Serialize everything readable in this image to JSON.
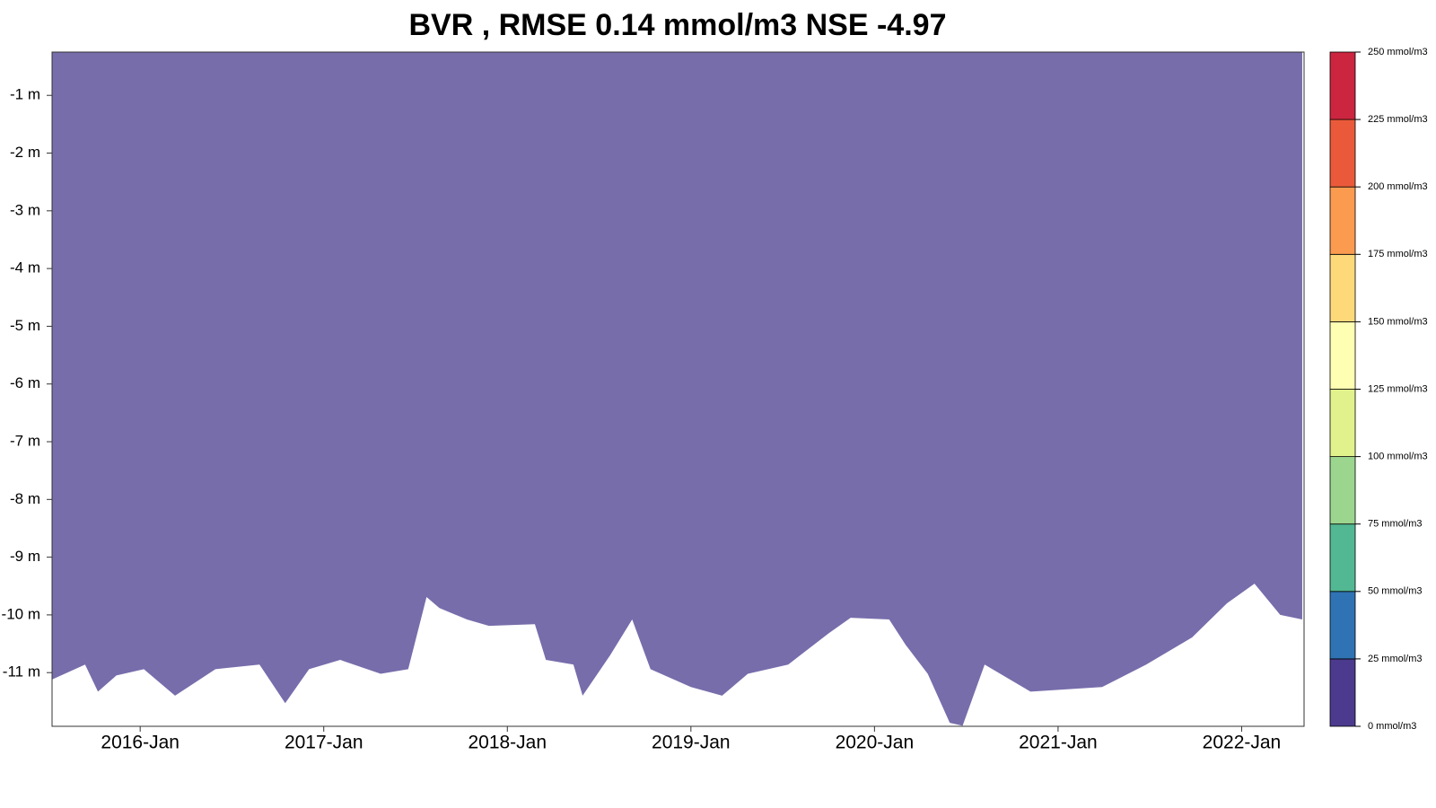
{
  "chart_data": {
    "type": "depth-area",
    "title": "BVR , RMSE 0.14 mmol/m3 NSE -4.97",
    "fill_color": "#776dab",
    "x": [
      2015.52,
      2015.7,
      2015.77,
      2015.87,
      2016.02,
      2016.19,
      2016.41,
      2016.65,
      2016.79,
      2016.92,
      2017.09,
      2017.31,
      2017.46,
      2017.56,
      2017.63,
      2017.78,
      2017.9,
      2018.15,
      2018.21,
      2018.36,
      2018.41,
      2018.56,
      2018.68,
      2018.78,
      2019.0,
      2019.17,
      2019.31,
      2019.53,
      2019.75,
      2019.87,
      2020.08,
      2020.17,
      2020.29,
      2020.41,
      2020.48,
      2020.6,
      2020.85,
      2021.24,
      2021.48,
      2021.73,
      2021.92,
      2022.07,
      2022.21,
      2022.33
    ],
    "values": [
      -11.12,
      -10.86,
      -11.33,
      -11.05,
      -10.94,
      -11.4,
      -10.94,
      -10.86,
      -11.53,
      -10.94,
      -10.78,
      -11.02,
      -10.94,
      -9.69,
      -9.88,
      -10.08,
      -10.19,
      -10.16,
      -10.78,
      -10.86,
      -11.4,
      -10.7,
      -10.08,
      -10.94,
      -11.25,
      -11.4,
      -11.02,
      -10.86,
      -10.32,
      -10.05,
      -10.08,
      -10.52,
      -11.02,
      -11.87,
      -11.92,
      -10.86,
      -11.33,
      -11.25,
      -10.86,
      -10.39,
      -9.8,
      -9.46,
      -10.0,
      -10.08
    ],
    "xlim": [
      2015.52,
      2022.34
    ],
    "xticks": [
      {
        "value": 2016,
        "label": "2016-Jan"
      },
      {
        "value": 2017,
        "label": "2017-Jan"
      },
      {
        "value": 2018,
        "label": "2018-Jan"
      },
      {
        "value": 2019,
        "label": "2019-Jan"
      },
      {
        "value": 2020,
        "label": "2020-Jan"
      },
      {
        "value": 2021,
        "label": "2021-Jan"
      },
      {
        "value": 2022,
        "label": "2022-Jan"
      }
    ],
    "ylim": [
      -11.93,
      -0.25
    ],
    "yticks": [
      {
        "value": -1,
        "label": "-1 m"
      },
      {
        "value": -2,
        "label": "-2 m"
      },
      {
        "value": -3,
        "label": "-3 m"
      },
      {
        "value": -4,
        "label": "-4 m"
      },
      {
        "value": -5,
        "label": "-5 m"
      },
      {
        "value": -6,
        "label": "-6 m"
      },
      {
        "value": -7,
        "label": "-7 m"
      },
      {
        "value": -8,
        "label": "-8 m"
      },
      {
        "value": -9,
        "label": "-9 m"
      },
      {
        "value": -10,
        "label": "-10 m"
      },
      {
        "value": -11,
        "label": "-11 m"
      }
    ],
    "colorbar": {
      "lim": [
        0,
        250
      ],
      "ticks": [
        {
          "value": 0,
          "label": "0 mmol/m3"
        },
        {
          "value": 25,
          "label": "25 mmol/m3"
        },
        {
          "value": 50,
          "label": "50 mmol/m3"
        },
        {
          "value": 75,
          "label": "75 mmol/m3"
        },
        {
          "value": 100,
          "label": "100 mmol/m3"
        },
        {
          "value": 125,
          "label": "125 mmol/m3"
        },
        {
          "value": 150,
          "label": "150 mmol/m3"
        },
        {
          "value": 175,
          "label": "175 mmol/m3"
        },
        {
          "value": 200,
          "label": "200 mmol/m3"
        },
        {
          "value": 225,
          "label": "225 mmol/m3"
        },
        {
          "value": 250,
          "label": "250 mmol/m3"
        }
      ],
      "colors": [
        "#4c3a8e",
        "#2f73b4",
        "#52b793",
        "#9bd58e",
        "#e1f28c",
        "#ffffb3",
        "#fdd97a",
        "#fa9b50",
        "#ea5a3a",
        "#cb2540"
      ]
    }
  }
}
